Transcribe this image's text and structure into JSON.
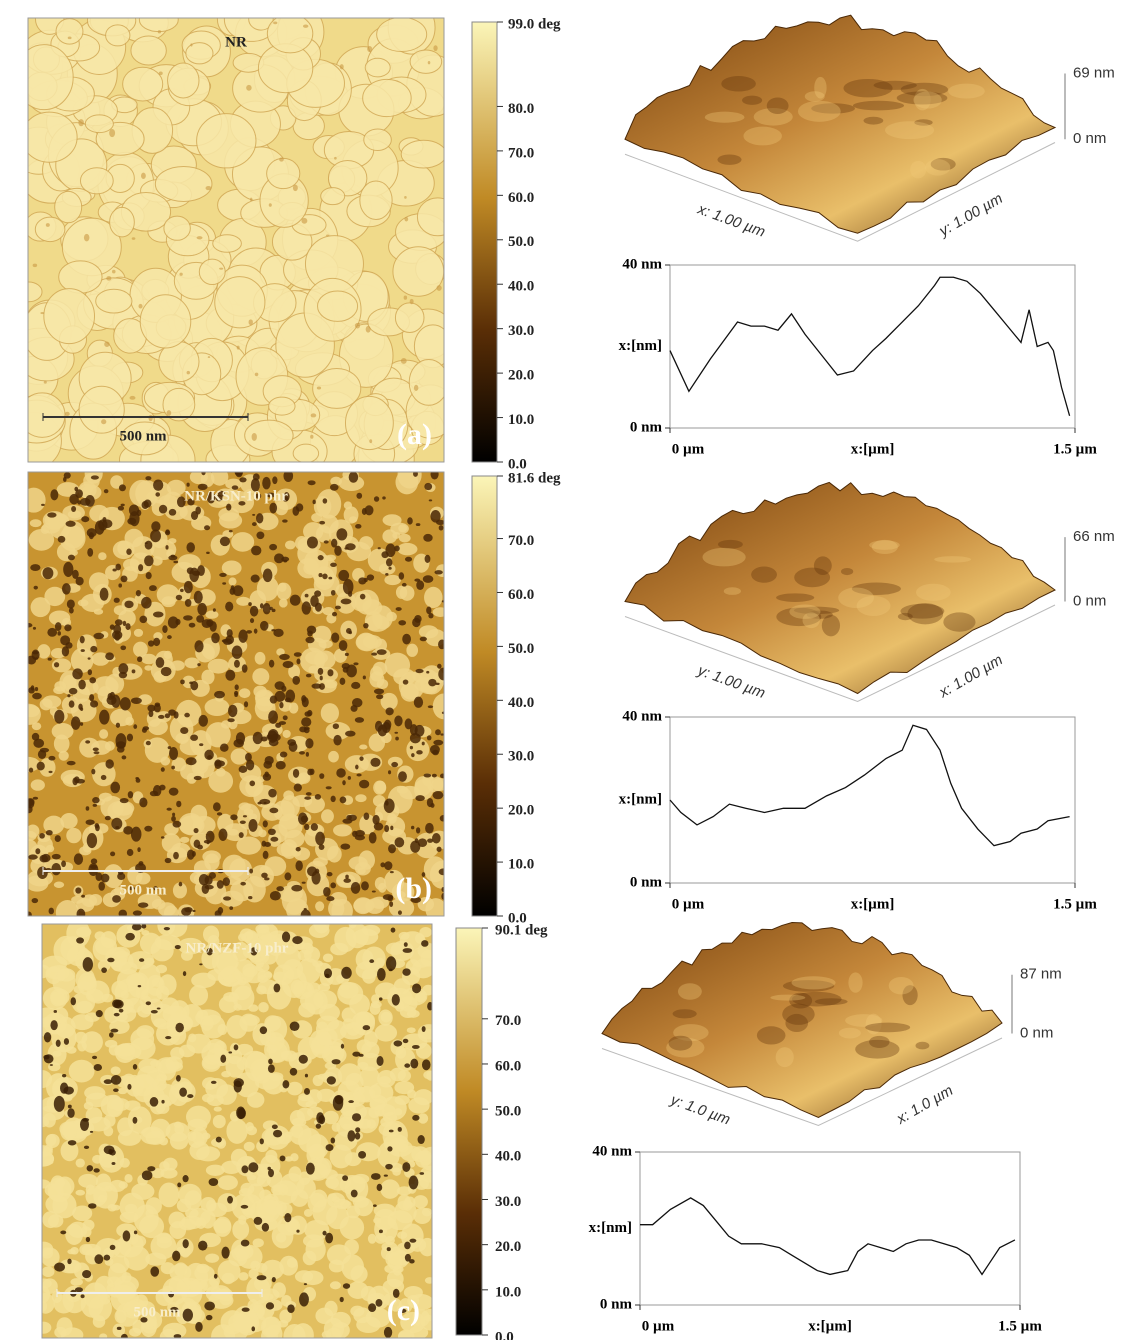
{
  "panels": [
    {
      "label": "(a)",
      "image": {
        "title": "NR",
        "scale_bar": "500 nm"
      },
      "colorbar": {
        "ticks": [
          {
            "value": 99,
            "label": "99.0 deg"
          },
          {
            "value": 80,
            "label": "80.0"
          },
          {
            "value": 70,
            "label": "70.0"
          },
          {
            "value": 60,
            "label": "60.0"
          },
          {
            "value": 50,
            "label": "50.0"
          },
          {
            "value": 40,
            "label": "40.0"
          },
          {
            "value": 30,
            "label": "30.0"
          },
          {
            "value": 20,
            "label": "20.0"
          },
          {
            "value": 10,
            "label": "10.0"
          },
          {
            "value": 0,
            "label": "0.0"
          }
        ]
      },
      "topography": {
        "z_ticks": [
          "69 nm",
          "0 nm"
        ],
        "left_axis": "x: 1.00 µm",
        "right_axis": "y: 1.00 µm"
      },
      "profile": {
        "type": "line",
        "ylabel": "x:[nm]",
        "xlabel": "x:[µm]",
        "xlim": [
          0,
          1.5
        ],
        "ylim": [
          0,
          40
        ],
        "xticks": [
          {
            "value": 0,
            "label": "0 µm"
          },
          {
            "value": 1.5,
            "label": "1.5 µm"
          }
        ],
        "yticks": [
          {
            "value": 0,
            "label": "0 nm"
          },
          {
            "value": 40,
            "label": "40 nm"
          }
        ],
        "x": [
          0,
          0.07,
          0.15,
          0.25,
          0.3,
          0.35,
          0.4,
          0.45,
          0.5,
          0.56,
          0.62,
          0.68,
          0.75,
          0.8,
          0.86,
          0.92,
          0.98,
          1.0,
          1.05,
          1.1,
          1.15,
          1.2,
          1.25,
          1.3,
          1.33,
          1.36,
          1.4,
          1.42,
          1.45,
          1.48
        ],
        "values": [
          19,
          9,
          17,
          26,
          25,
          25,
          24,
          28,
          23,
          18,
          13,
          14,
          19,
          22,
          26,
          30,
          35,
          37,
          37,
          36,
          33,
          29,
          25,
          21,
          29,
          20,
          21,
          19,
          10,
          3
        ]
      }
    },
    {
      "label": "(b)",
      "image": {
        "title": "NR/KSN-10 phr",
        "scale_bar": "500 nm"
      },
      "colorbar": {
        "ticks": [
          {
            "value": 81.6,
            "label": "81.6 deg"
          },
          {
            "value": 70,
            "label": "70.0"
          },
          {
            "value": 60,
            "label": "60.0"
          },
          {
            "value": 50,
            "label": "50.0"
          },
          {
            "value": 40,
            "label": "40.0"
          },
          {
            "value": 30,
            "label": "30.0"
          },
          {
            "value": 20,
            "label": "20.0"
          },
          {
            "value": 10,
            "label": "10.0"
          },
          {
            "value": 0,
            "label": "0.0"
          }
        ]
      },
      "topography": {
        "z_ticks": [
          "66 nm",
          "0 nm"
        ],
        "left_axis": "y: 1.00 µm",
        "right_axis": "x: 1.00 µm"
      },
      "profile": {
        "type": "line",
        "ylabel": "x:[nm]",
        "xlabel": "x:[µm]",
        "xlim": [
          0,
          1.5
        ],
        "ylim": [
          0,
          40
        ],
        "xticks": [
          {
            "value": 0,
            "label": "0 µm"
          },
          {
            "value": 1.5,
            "label": "1.5 µm"
          }
        ],
        "yticks": [
          {
            "value": 0,
            "label": "0 nm"
          },
          {
            "value": 40,
            "label": "40 nm"
          }
        ],
        "x": [
          0,
          0.04,
          0.1,
          0.16,
          0.22,
          0.28,
          0.35,
          0.42,
          0.5,
          0.58,
          0.65,
          0.72,
          0.8,
          0.86,
          0.9,
          0.95,
          1.0,
          1.04,
          1.08,
          1.14,
          1.2,
          1.26,
          1.3,
          1.36,
          1.4,
          1.48
        ],
        "values": [
          20,
          17,
          14,
          16,
          19,
          18,
          17,
          18,
          18,
          21,
          23,
          26,
          30,
          32,
          38,
          37,
          32,
          24,
          18,
          13,
          9,
          10,
          12,
          13,
          15,
          16
        ]
      }
    },
    {
      "label": "(c)",
      "image": {
        "title": "NR/NZF-10 phr",
        "scale_bar": "500 nm"
      },
      "colorbar": {
        "ticks": [
          {
            "value": 90.1,
            "label": "90.1 deg"
          },
          {
            "value": 70,
            "label": "70.0"
          },
          {
            "value": 60,
            "label": "60.0"
          },
          {
            "value": 50,
            "label": "50.0"
          },
          {
            "value": 40,
            "label": "40.0"
          },
          {
            "value": 30,
            "label": "30.0"
          },
          {
            "value": 20,
            "label": "20.0"
          },
          {
            "value": 10,
            "label": "10.0"
          },
          {
            "value": 0,
            "label": "0.0"
          }
        ]
      },
      "topography": {
        "z_ticks": [
          "87 nm",
          "0 nm"
        ],
        "left_axis": "y: 1.0 µm",
        "right_axis": "x: 1.0 µm"
      },
      "profile": {
        "type": "line",
        "ylabel": "x:[nm]",
        "xlabel": "x:[µm]",
        "xlim": [
          0,
          1.5
        ],
        "ylim": [
          0,
          40
        ],
        "xticks": [
          {
            "value": 0,
            "label": "0 µm"
          },
          {
            "value": 1.5,
            "label": "1.5 µm"
          }
        ],
        "yticks": [
          {
            "value": 0,
            "label": "0 nm"
          },
          {
            "value": 40,
            "label": "40 nm"
          }
        ],
        "x": [
          0,
          0.05,
          0.12,
          0.2,
          0.25,
          0.3,
          0.35,
          0.4,
          0.48,
          0.55,
          0.6,
          0.65,
          0.7,
          0.75,
          0.82,
          0.86,
          0.9,
          0.95,
          1.0,
          1.05,
          1.1,
          1.15,
          1.2,
          1.25,
          1.3,
          1.35,
          1.38,
          1.42,
          1.48
        ],
        "values": [
          21,
          21,
          25,
          28,
          26,
          22,
          18,
          16,
          16,
          15,
          13,
          11,
          9,
          8,
          9,
          14,
          16,
          15,
          14,
          16,
          17,
          17,
          16,
          15,
          13,
          8,
          11,
          15,
          17
        ]
      }
    }
  ]
}
